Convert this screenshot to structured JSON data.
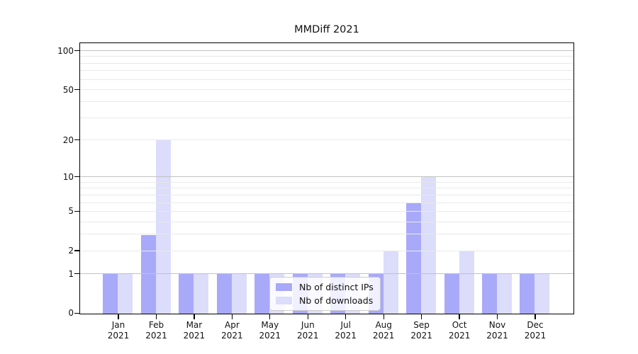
{
  "chart_data": {
    "type": "bar",
    "title": "MMDiff 2021",
    "x_axis": {
      "categories": [
        "Jan",
        "Feb",
        "Mar",
        "Apr",
        "May",
        "Jun",
        "Jul",
        "Aug",
        "Sep",
        "Oct",
        "Nov",
        "Dec"
      ],
      "year": "2021"
    },
    "y_axis": {
      "scale": "log1p",
      "tick_labels": [
        100,
        50,
        20,
        10,
        5,
        2,
        1,
        0
      ],
      "major_gridlines": [
        1,
        10,
        100
      ],
      "minor_gridlines": [
        2,
        3,
        4,
        5,
        6,
        7,
        8,
        9,
        20,
        30,
        40,
        50,
        60,
        70,
        80,
        90
      ],
      "ylim": [
        0,
        113
      ],
      "grid": true
    },
    "series": [
      {
        "name": "Nb of distinct IPs",
        "color": "#a9a9fa",
        "values": [
          1,
          3,
          1,
          1,
          1,
          1,
          1,
          1,
          6,
          1,
          1,
          1
        ]
      },
      {
        "name": "Nb of downloads",
        "color": "#dcdcfb",
        "values": [
          1,
          20,
          1,
          1,
          1,
          1,
          1,
          2,
          10,
          2,
          1,
          1
        ]
      }
    ],
    "legend": {
      "position": "lower center",
      "labels": [
        "Nb of distinct IPs",
        "Nb of downloads"
      ]
    }
  },
  "colors": {
    "background": "#ffffff",
    "spine": "#000000",
    "major_grid": "#c2c2c2",
    "minor_grid": "#e9e9e9",
    "series_ips": "#a9a9fa",
    "series_downloads": "#dcdcfb",
    "legend_border": "#cccccc"
  }
}
